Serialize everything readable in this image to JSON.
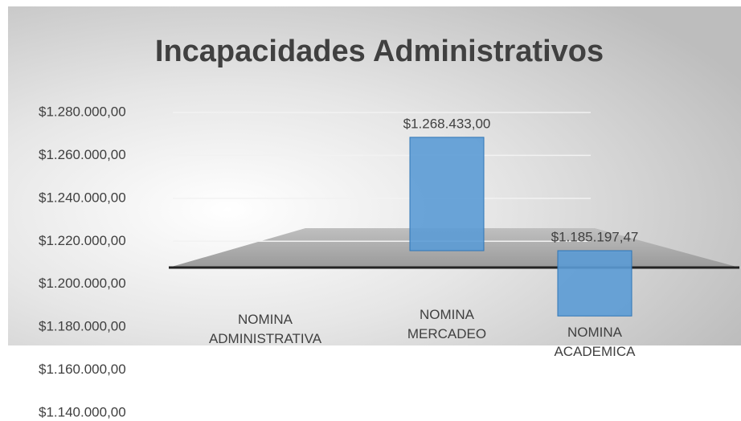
{
  "chart_data": {
    "type": "bar",
    "title": "Incapacidades Administrativos",
    "categories": [
      "NOMINA ADMINISTRATIVA",
      "NOMINA MERCADEO",
      "NOMINA ACADEMICA"
    ],
    "values": [
      null,
      1268433,
      1185197.47
    ],
    "value_labels": [
      null,
      "$1.268.433,00",
      "$1.185.197,47"
    ],
    "color": "#5b9bd5",
    "ylim": [
      1140000,
      1280000
    ],
    "yticks": [
      {
        "value": 1280000,
        "label": "$1.280.000,00"
      },
      {
        "value": 1260000,
        "label": "$1.260.000,00"
      },
      {
        "value": 1240000,
        "label": "$1.240.000,00"
      },
      {
        "value": 1220000,
        "label": "$1.220.000,00"
      },
      {
        "value": 1200000,
        "label": "$1.200.000,00"
      },
      {
        "value": 1180000,
        "label": "$1.180.000,00"
      },
      {
        "value": 1160000,
        "label": "$1.160.000,00"
      },
      {
        "value": 1140000,
        "label": "$1.140.000,00"
      }
    ],
    "grid": true
  }
}
